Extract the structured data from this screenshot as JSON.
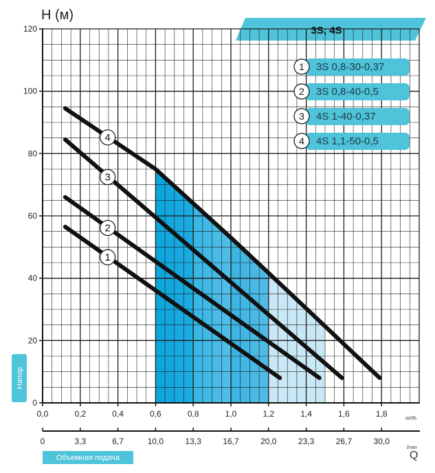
{
  "chart_data": {
    "type": "line",
    "title": "3S, 4S",
    "ylabel": "H (м)",
    "xlabel": "Q",
    "y_axis_badge": "Напор",
    "x_axis_badge": "Объемная подача",
    "x_unit_primary": "m³/h",
    "x_unit_secondary": "l/min",
    "xlim": [
      0,
      2.0
    ],
    "ylim": [
      0,
      120
    ],
    "yticks": [
      "0",
      "20",
      "40",
      "60",
      "80",
      "100",
      "120"
    ],
    "xticks_m3h": [
      "0,0",
      "0,2",
      "0,4",
      "0,6",
      "0,8",
      "1,0",
      "1,2",
      "1,4",
      "1,6",
      "1,8"
    ],
    "xticks_lmin": [
      "0",
      "3,3",
      "6,7",
      "10,0",
      "13,3",
      "16,7",
      "20,0",
      "23,3",
      "26,7",
      "30,0"
    ],
    "grid": true,
    "legend_position": "top-right",
    "series": [
      {
        "name": "3S 0,8-30-0,37",
        "marker": "1",
        "x": [
          0.12,
          1.26
        ],
        "y": [
          56.5,
          8
        ]
      },
      {
        "name": "3S 0,8-40-0,5",
        "marker": "2",
        "x": [
          0.12,
          1.47
        ],
        "y": [
          66,
          8
        ]
      },
      {
        "name": "4S 1-40-0,37",
        "marker": "3",
        "x": [
          0.12,
          1.59
        ],
        "y": [
          84.5,
          8
        ]
      },
      {
        "name": "4S 1,1-50-0,5",
        "marker": "4",
        "x": [
          0.12,
          0.6,
          1.0,
          1.3,
          1.79
        ],
        "y": [
          94.5,
          75,
          53,
          36,
          8
        ]
      }
    ],
    "working_range": {
      "x": [
        0.6,
        1.2
      ],
      "extended_x": [
        0.6,
        1.5
      ]
    },
    "colors": {
      "accent": "#4fc3d9",
      "grid": "#1a1a1a",
      "curve": "#111111",
      "zone_light": "#c9e8f5",
      "zone_dark": "#0aa2dc"
    }
  }
}
